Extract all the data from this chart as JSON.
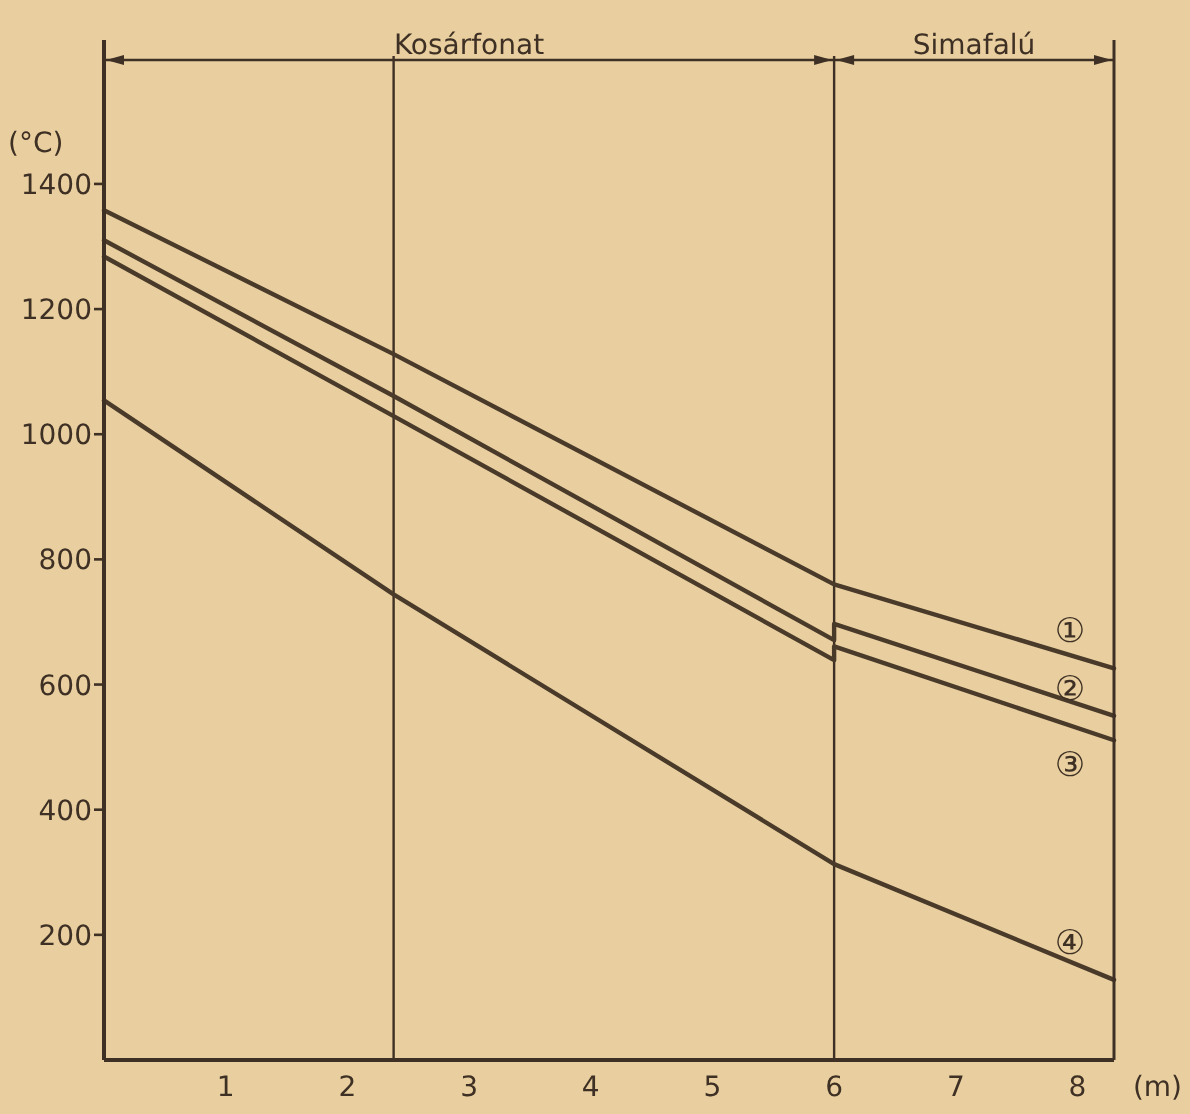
{
  "chart_data": {
    "type": "line",
    "xlabel": "(m)",
    "ylabel": "(°C)",
    "xlim": [
      0,
      8.3
    ],
    "xticks": [
      1,
      2,
      3,
      4,
      5,
      6,
      7,
      8
    ],
    "ylim": [
      0,
      1630
    ],
    "yticks": [
      200,
      400,
      600,
      800,
      1000,
      1200,
      1400
    ],
    "marker": "none",
    "line_style": "solid",
    "series": [
      {
        "name": "①",
        "color": "#4a3a2a",
        "x": [
          0,
          2.38,
          6,
          8.3
        ],
        "values": [
          1358,
          1128,
          760,
          626
        ]
      },
      {
        "name": "②",
        "color": "#4a3a2a",
        "x": [
          0,
          2.38,
          6,
          6,
          8.3
        ],
        "values": [
          1310,
          1061,
          671,
          697,
          550
        ]
      },
      {
        "name": "③",
        "color": "#4a3a2a",
        "x": [
          0,
          2.38,
          6,
          6,
          8.3
        ],
        "values": [
          1284,
          1029,
          639,
          661,
          511
        ]
      },
      {
        "name": "④",
        "color": "#4a3a2a",
        "x": [
          0,
          2.38,
          6,
          8.3
        ],
        "values": [
          1054,
          744,
          313,
          128
        ]
      }
    ],
    "ref_lines": [
      {
        "axis": "x",
        "value": 2.38,
        "label": null
      },
      {
        "axis": "x",
        "value": 6,
        "label": null
      }
    ],
    "annotations": [
      "Kosárfonat",
      "Simafalú"
    ]
  }
}
